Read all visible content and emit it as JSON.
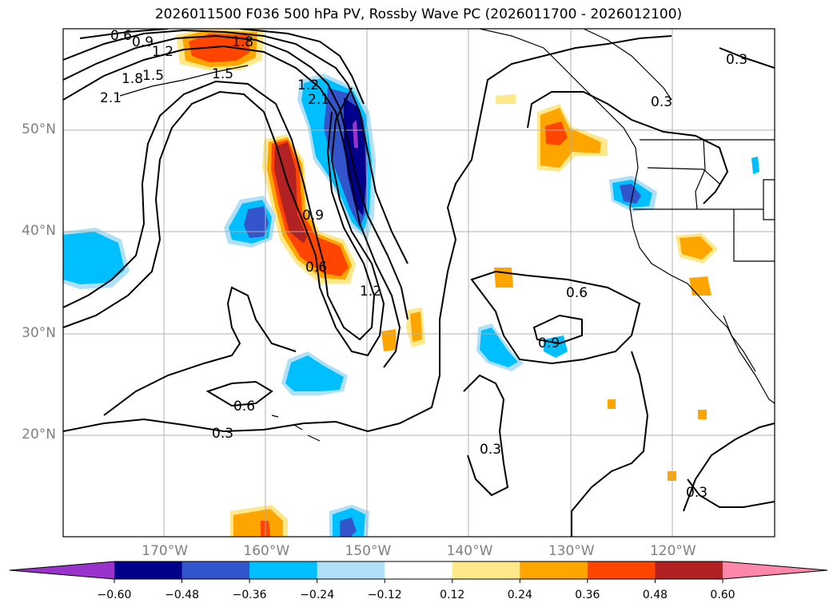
{
  "title": "2026011500 F036 500 hPa PV, Rossby Wave PC (2026011700 - 2026012100)",
  "map": {
    "lon_range": [
      -180,
      -110
    ],
    "lat_range": [
      10,
      60
    ],
    "lat_labels": [
      {
        "lat": 50,
        "text": "50°N"
      },
      {
        "lat": 40,
        "text": "40°N"
      },
      {
        "lat": 30,
        "text": "30°N"
      },
      {
        "lat": 20,
        "text": "20°N"
      }
    ],
    "lon_labels": [
      {
        "lon": -170,
        "text": "170°W"
      },
      {
        "lon": -160,
        "text": "160°W"
      },
      {
        "lon": -150,
        "text": "150°W"
      },
      {
        "lon": -140,
        "text": "140°W"
      },
      {
        "lon": -130,
        "text": "130°W"
      },
      {
        "lon": -120,
        "text": "120°W"
      }
    ],
    "contour_labels": [
      "0.3",
      "0.6",
      "0.9",
      "1.2",
      "1.5",
      "1.8",
      "2.1"
    ]
  },
  "colorbar": {
    "ticks": [
      "−0.60",
      "−0.48",
      "−0.36",
      "−0.24",
      "−0.12",
      "0.12",
      "0.24",
      "0.36",
      "0.48",
      "0.60"
    ],
    "colors": [
      "#9933cc",
      "#00008b",
      "#3355cc",
      "#00bfff",
      "#b0e0f8",
      "#ffffff",
      "#ffe88a",
      "#ffa500",
      "#ff4500",
      "#b22222",
      "#ff88aa"
    ]
  }
}
